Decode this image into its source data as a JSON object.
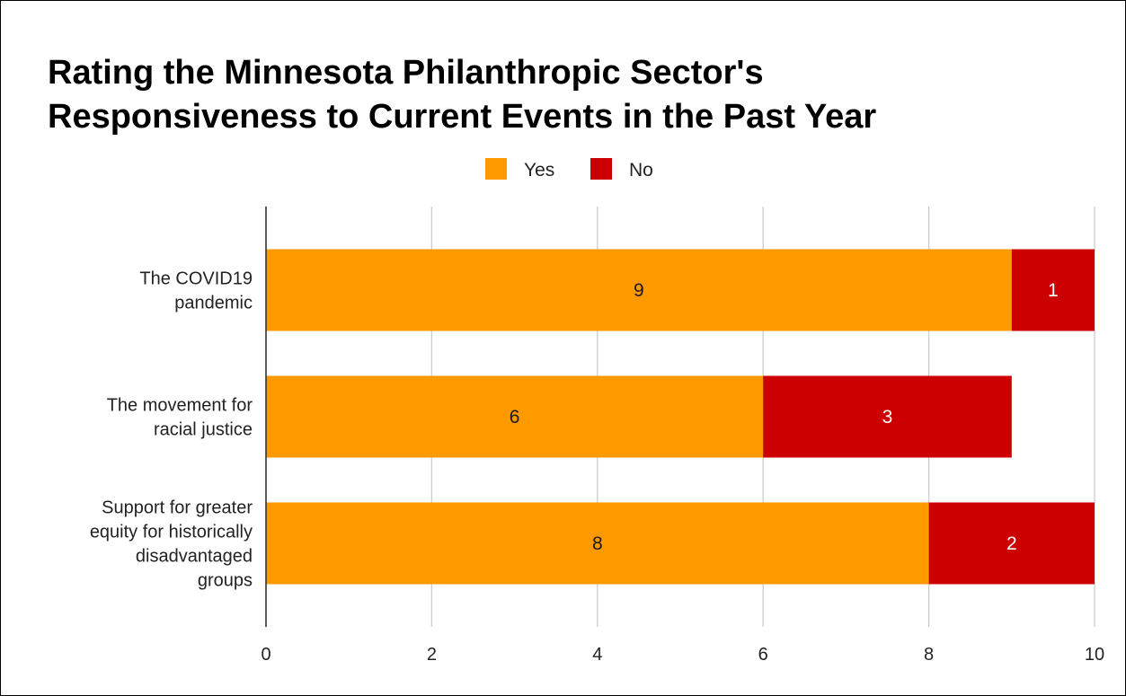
{
  "chart_data": {
    "type": "bar",
    "orientation": "horizontal",
    "stacked": true,
    "title_lines": [
      "Rating the Minnesota Philanthropic Sector's",
      "Responsiveness to Current Events in the Past Year"
    ],
    "categories": [
      [
        "The COVID19",
        "pandemic"
      ],
      [
        "The movement for",
        "racial justice"
      ],
      [
        "Support for greater",
        "equity for historically",
        "disadvantaged",
        "groups"
      ]
    ],
    "series": [
      {
        "name": "Yes",
        "values": [
          9,
          6,
          8
        ],
        "color": "#ff9900",
        "label_color": "#1a1a1a"
      },
      {
        "name": "No",
        "values": [
          1,
          3,
          2
        ],
        "color": "#cc0000",
        "label_color": "#ffffff"
      }
    ],
    "xlim": [
      0,
      10
    ],
    "xticks": [
      "0",
      "2",
      "4",
      "6",
      "8",
      "10"
    ],
    "grid": true,
    "legend_position": "top-center",
    "data_labels": true
  }
}
